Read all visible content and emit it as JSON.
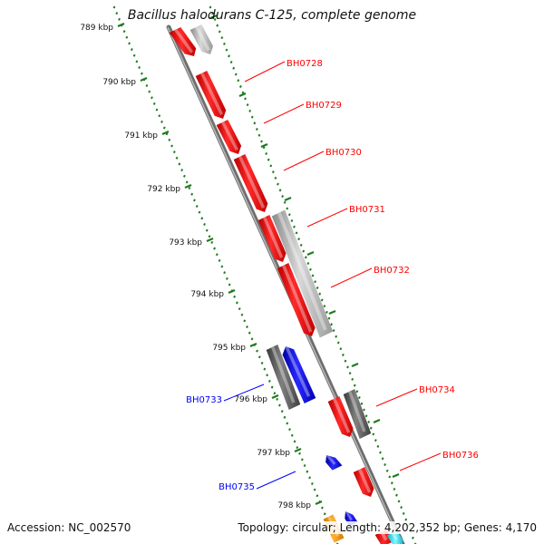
{
  "title": "Bacillus halodurans C-125, complete genome",
  "accession": "Accession: NC_002570",
  "stats": "Topology: circular; Length: 4,202,352 bp; Genes: 4,170",
  "colors": {
    "forward": "#ff0000",
    "reverse": "#0000ff",
    "backbone": "#8a8a8a",
    "ticks": "#1f7a1f",
    "rna_gray": "#9a9a9a",
    "dark_gray": "#555555",
    "orange": "#ff9900",
    "cyan": "#00e5ff"
  },
  "ticks": [
    {
      "label": "789 kbp"
    },
    {
      "label": "790 kbp"
    },
    {
      "label": "791 kbp"
    },
    {
      "label": "792 kbp"
    },
    {
      "label": "793 kbp"
    },
    {
      "label": "794 kbp"
    },
    {
      "label": "795 kbp"
    },
    {
      "label": "796 kbp"
    },
    {
      "label": "797 kbp"
    },
    {
      "label": "798 kbp"
    }
  ],
  "gene_labels": [
    {
      "name": "BH0728",
      "strand": "forward"
    },
    {
      "name": "BH0729",
      "strand": "forward"
    },
    {
      "name": "BH0730",
      "strand": "forward"
    },
    {
      "name": "BH0731",
      "strand": "forward"
    },
    {
      "name": "BH0732",
      "strand": "forward"
    },
    {
      "name": "BH0733",
      "strand": "reverse"
    },
    {
      "name": "BH0734",
      "strand": "forward"
    },
    {
      "name": "BH0735",
      "strand": "reverse"
    },
    {
      "name": "BH0736",
      "strand": "forward"
    }
  ]
}
